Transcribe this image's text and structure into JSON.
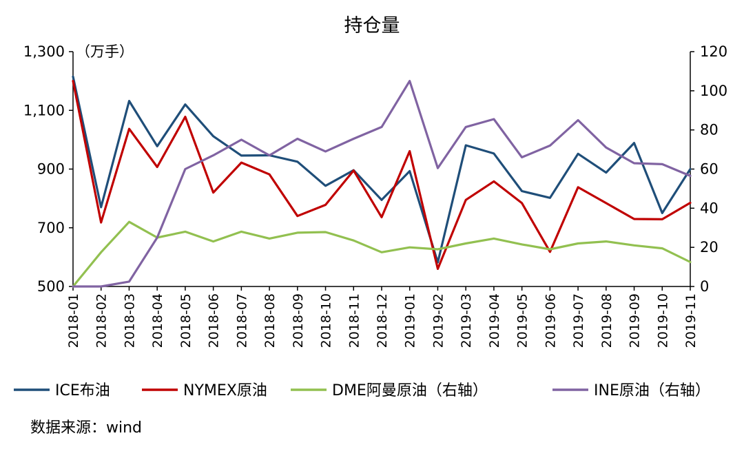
{
  "chart_data": {
    "type": "line",
    "title": "持仓量",
    "unit_label": "（万手）",
    "source": "数据来源：wind",
    "categories": [
      "2018-01",
      "2018-02",
      "2018-03",
      "2018-04",
      "2018-05",
      "2018-06",
      "2018-07",
      "2018-08",
      "2018-09",
      "2018-10",
      "2018-11",
      "2018-12",
      "2019-01",
      "2019-02",
      "2019-03",
      "2019-04",
      "2019-05",
      "2019-06",
      "2019-07",
      "2019-08",
      "2019-09",
      "2019-10",
      "2019-11"
    ],
    "left_axis": {
      "min": 500,
      "max": 1300,
      "ticks": [
        500,
        700,
        900,
        1100,
        1300
      ],
      "tick_labels": [
        "500",
        "700",
        "900",
        "1,100",
        "1,300"
      ]
    },
    "right_axis": {
      "min": 0,
      "max": 120,
      "ticks": [
        0,
        20,
        40,
        60,
        80,
        100,
        120
      ],
      "tick_labels": [
        "0",
        "20",
        "40",
        "60",
        "80",
        "100",
        "120"
      ]
    },
    "series": [
      {
        "name": "ICE布油",
        "axis": "left",
        "color": "#1f4e79",
        "values": [
          1215,
          770,
          1132,
          978,
          1120,
          1012,
          946,
          947,
          925,
          843,
          896,
          795,
          893,
          582,
          981,
          953,
          825,
          802,
          952,
          888,
          989,
          750,
          900
        ]
      },
      {
        "name": "NYMEX原油",
        "axis": "left",
        "color": "#c00000",
        "values": [
          1200,
          718,
          1037,
          907,
          1078,
          820,
          922,
          882,
          740,
          778,
          895,
          736,
          961,
          560,
          795,
          858,
          784,
          618,
          838,
          784,
          730,
          729,
          785
        ]
      },
      {
        "name": "DME阿曼原油（右轴）",
        "axis": "right",
        "color": "#92c050",
        "values": [
          0,
          17.5,
          33,
          25,
          28,
          23,
          28,
          24.5,
          27.5,
          27.8,
          23.5,
          17.5,
          20,
          19,
          22,
          24.5,
          21.5,
          19,
          22,
          23,
          21,
          19.5,
          12.5
        ]
      },
      {
        "name": "INE原油（右轴）",
        "axis": "right",
        "color": "#8063a2",
        "values": [
          0,
          0,
          2.5,
          25,
          60,
          67,
          75,
          67,
          75.5,
          69,
          75.5,
          81.5,
          105,
          60.5,
          81.5,
          85.5,
          66,
          72,
          85,
          71,
          63,
          62.5,
          56.5
        ]
      }
    ]
  }
}
